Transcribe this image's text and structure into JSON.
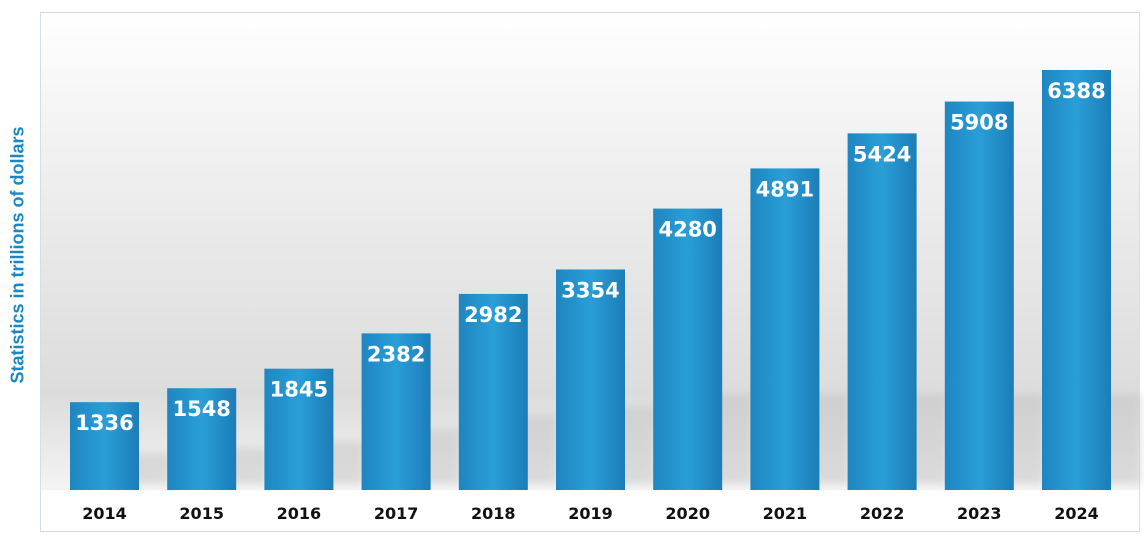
{
  "chart_data": {
    "type": "bar",
    "title": "",
    "xlabel": "",
    "ylabel": "Statistics in trillions of dollars",
    "categories": [
      "2014",
      "2015",
      "2016",
      "2017",
      "2018",
      "2019",
      "2020",
      "2021",
      "2022",
      "2023",
      "2024"
    ],
    "values": [
      1336,
      1548,
      1845,
      2382,
      2982,
      3354,
      4280,
      4891,
      5424,
      5908,
      6388
    ],
    "data_labels": [
      "1336",
      "1548",
      "1845",
      "2382",
      "2982",
      "3354",
      "4280",
      "4891",
      "5424",
      "5908",
      "6388"
    ],
    "grid": false,
    "legend": "none",
    "colors": {
      "bar": "#2597d3",
      "bar_dark": "#1c7fb7",
      "axis_label": "#1a87c1"
    }
  }
}
